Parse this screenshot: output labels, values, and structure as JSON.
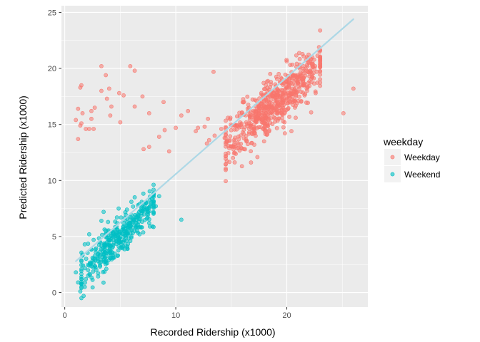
{
  "chart_data": {
    "type": "scatter",
    "xlabel": "Recorded Ridership (x1000)",
    "ylabel": "Predicted Ridership (x1000)",
    "xlim": [
      -0.3,
      27.3
    ],
    "ylim": [
      -1.3,
      25.6
    ],
    "x_ticks": [
      "0",
      "10",
      "20"
    ],
    "y_ticks": [
      "0",
      "5",
      "10",
      "15",
      "20",
      "25"
    ],
    "grid": true,
    "legend": {
      "title": "weekday",
      "position": "right",
      "entries": [
        "Weekday",
        "Weekend"
      ]
    },
    "colors": {
      "Weekday": "#F8766D",
      "Weekend": "#00BFC4",
      "fit_line": "#ADD8E6",
      "panel": "#EBEBEB"
    },
    "fit_line": {
      "x": [
        1.0,
        26.0
      ],
      "y": [
        2.8,
        24.4
      ]
    },
    "series": [
      {
        "name": "Weekday",
        "points": [
          [
            1.0,
            15.4
          ],
          [
            1.2,
            16.4
          ],
          [
            1.5,
            15.1
          ],
          [
            1.4,
            14.9
          ],
          [
            1.6,
            16.0
          ],
          [
            1.2,
            13.7
          ],
          [
            1.4,
            18.3
          ],
          [
            1.5,
            18.5
          ],
          [
            1.9,
            14.6
          ],
          [
            2.2,
            14.6
          ],
          [
            2.4,
            16.2
          ],
          [
            2.6,
            14.6
          ],
          [
            2.4,
            15.5
          ],
          [
            2.7,
            16.5
          ],
          [
            3.3,
            18.0
          ],
          [
            3.3,
            20.2
          ],
          [
            3.7,
            19.4
          ],
          [
            3.8,
            17.3
          ],
          [
            4.0,
            18.2
          ],
          [
            4.2,
            16.6
          ],
          [
            4.1,
            15.8
          ],
          [
            4.9,
            17.8
          ],
          [
            5.0,
            15.2
          ],
          [
            5.3,
            17.6
          ],
          [
            5.9,
            20.2
          ],
          [
            6.3,
            19.8
          ],
          [
            6.3,
            16.6
          ],
          [
            7.0,
            17.5
          ],
          [
            7.6,
            16.0
          ],
          [
            7.1,
            12.8
          ],
          [
            7.6,
            13.0
          ],
          [
            8.5,
            13.9
          ],
          [
            8.9,
            17.0
          ],
          [
            9.0,
            14.5
          ],
          [
            9.4,
            12.6
          ],
          [
            10.0,
            14.7
          ],
          [
            10.5,
            15.8
          ],
          [
            11.1,
            16.2
          ],
          [
            11.8,
            14.4
          ],
          [
            12.0,
            14.7
          ],
          [
            12.9,
            15.5
          ],
          [
            12.6,
            14.8
          ],
          [
            13.0,
            13.6
          ],
          [
            13.4,
            19.7
          ],
          [
            14.4,
            13.8
          ],
          [
            14.7,
            15.6
          ],
          [
            26.0,
            18.2
          ],
          [
            25.1,
            16.0
          ],
          [
            22.0,
            20.5
          ],
          [
            22.9,
            21.9
          ],
          [
            21.6,
            17.6
          ],
          [
            22.6,
            17.8
          ],
          [
            21.5,
            20.2
          ],
          [
            22.3,
            21.0
          ],
          [
            20.5,
            17.5
          ],
          [
            19.8,
            15.2
          ],
          [
            20.8,
            15.6
          ],
          [
            13.5,
            14.0
          ],
          [
            14.1,
            14.6
          ],
          [
            12.8,
            13.3
          ]
        ],
        "cluster": {
          "x_range": [
            14.5,
            23.0
          ],
          "trend": {
            "intercept": 0.9,
            "slope": 0.85
          },
          "count": 700
        }
      },
      {
        "name": "Weekend",
        "points": [
          [
            1.7,
            -0.3
          ],
          [
            1.5,
            -0.5
          ],
          [
            1.4,
            0.1
          ],
          [
            1.8,
            0.5
          ],
          [
            1.2,
            0.9
          ],
          [
            1.9,
            1.2
          ],
          [
            1.0,
            1.8
          ],
          [
            2.1,
            2.0
          ],
          [
            1.6,
            3.3
          ],
          [
            2.5,
            3.1
          ],
          [
            1.8,
            4.3
          ],
          [
            2.6,
            4.7
          ],
          [
            2.2,
            5.2
          ],
          [
            3.3,
            6.4
          ],
          [
            3.5,
            7.2
          ],
          [
            3.9,
            6.3
          ],
          [
            4.7,
            6.7
          ],
          [
            5.6,
            7.4
          ],
          [
            6.0,
            8.1
          ],
          [
            6.3,
            8.5
          ],
          [
            6.6,
            7.8
          ],
          [
            7.1,
            8.0
          ],
          [
            7.5,
            7.2
          ],
          [
            7.6,
            6.2
          ],
          [
            8.2,
            7.7
          ],
          [
            8.5,
            8.6
          ],
          [
            10.5,
            6.5
          ],
          [
            7.9,
            5.9
          ],
          [
            6.9,
            5.8
          ],
          [
            5.5,
            4.9
          ]
        ],
        "cluster": {
          "x_range": [
            1.5,
            8.0
          ],
          "trend": {
            "intercept": 0.0,
            "slope": 1.0
          },
          "count": 400
        }
      }
    ]
  }
}
